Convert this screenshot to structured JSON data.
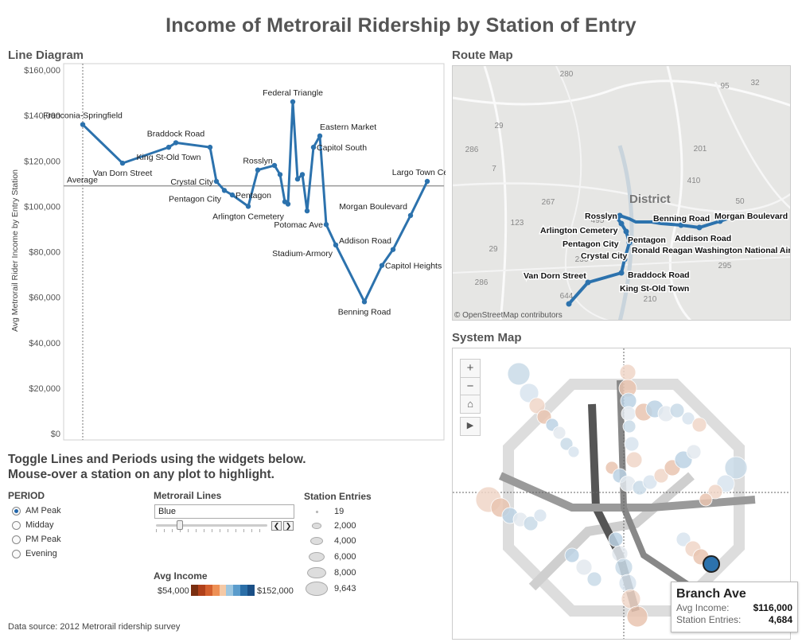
{
  "title": "Income of Metrorail Ridership by Station of Entry",
  "sections": {
    "line_diagram": "Line Diagram",
    "route_map": "Route Map",
    "system_map": "System Map"
  },
  "instructions": {
    "line1": "Toggle Lines and Periods using the widgets below.",
    "line2": "Mouse-over a station on any plot to highlight."
  },
  "period": {
    "title": "PERIOD",
    "options": [
      "AM Peak",
      "Midday",
      "PM Peak",
      "Evening"
    ],
    "selected": "AM Peak"
  },
  "metrorail_lines": {
    "title": "Metrorail Lines",
    "value": "Blue"
  },
  "station_entries": {
    "title": "Station Entries",
    "values": [
      "19",
      "2,000",
      "4,000",
      "6,000",
      "8,000",
      "9,643"
    ]
  },
  "avg_income": {
    "title": "Avg Income",
    "min": "$54,000",
    "max": "$152,000",
    "colors": [
      "#7a2e10",
      "#b0401a",
      "#d4602e",
      "#ee9055",
      "#f5c9a5",
      "#9cc6e0",
      "#5a9ccc",
      "#2b6fa8",
      "#1a4f86"
    ]
  },
  "data_source": "Data source:  2012 Metrorail ridership survey",
  "chart_data": {
    "type": "line",
    "title": "",
    "xlabel": "",
    "ylabel": "Avg Metrorail Rider Income by Entry Station",
    "ylim": [
      0,
      160000
    ],
    "yticks": [
      "$0",
      "$20,000",
      "$40,000",
      "$60,000",
      "$80,000",
      "$100,000",
      "$120,000",
      "$140,000",
      "$160,000"
    ],
    "average_label": "Average",
    "average_value": 109000,
    "color": "#2c72ad",
    "series": [
      {
        "values": [
          [
            0,
            136000
          ],
          [
            1,
            119000
          ],
          [
            2,
            126000
          ],
          [
            3,
            128000
          ],
          [
            4,
            126000
          ],
          [
            5,
            111000
          ],
          [
            6,
            107000
          ],
          [
            7,
            105000
          ],
          [
            8,
            100000
          ],
          [
            9,
            116000
          ],
          [
            10,
            118000
          ],
          [
            11,
            114000
          ],
          [
            12,
            102000
          ],
          [
            13,
            101000
          ],
          [
            14,
            146000
          ],
          [
            15,
            112000
          ],
          [
            16,
            114000
          ],
          [
            17,
            98000
          ],
          [
            18,
            126000
          ],
          [
            19,
            131000
          ],
          [
            20,
            92000
          ],
          [
            21,
            83000
          ],
          [
            22,
            58000
          ],
          [
            23,
            74000
          ],
          [
            24,
            81000
          ],
          [
            25,
            96000
          ],
          [
            26,
            111000
          ]
        ]
      }
    ],
    "labels": [
      {
        "i": 0,
        "text": "Franconia-Springfield",
        "pos": "above"
      },
      {
        "i": 1,
        "text": "Van Dorn Street",
        "pos": "below"
      },
      {
        "i": 2,
        "text": "King St-Old Town",
        "pos": "below"
      },
      {
        "i": 3,
        "text": "Braddock Road",
        "pos": "above"
      },
      {
        "i": 5,
        "text": "Crystal City",
        "pos": "left"
      },
      {
        "i": 6,
        "text": "Pentagon City",
        "pos": "belowleft"
      },
      {
        "i": 7,
        "text": "Pentagon",
        "pos": "right"
      },
      {
        "i": 8,
        "text": "Arlington Cemetery",
        "pos": "below"
      },
      {
        "i": 9,
        "text": "Rosslyn",
        "pos": "above"
      },
      {
        "i": 14,
        "text": "Federal Triangle",
        "pos": "above"
      },
      {
        "i": 19,
        "text": "Eastern Market",
        "pos": "aboveright"
      },
      {
        "i": 18,
        "text": "Capitol South",
        "pos": "right"
      },
      {
        "i": 20,
        "text": "Potomac Ave",
        "pos": "left"
      },
      {
        "i": 21,
        "text": "Stadium-Armory",
        "pos": "belowleft"
      },
      {
        "i": 21,
        "text": "Addison Road",
        "pos": "right2"
      },
      {
        "i": 22,
        "text": "Benning Road",
        "pos": "below"
      },
      {
        "i": 23,
        "text": "Capitol Heights",
        "pos": "right"
      },
      {
        "i": 25,
        "text": "Morgan Boulevard",
        "pos": "aboveleft"
      },
      {
        "i": 26,
        "text": "Largo Town Center",
        "pos": "above"
      }
    ]
  },
  "route_map": {
    "attribution": "© OpenStreetMap contributors",
    "district_label": "District",
    "stations": [
      "Rosslyn",
      "Arlington Cemetery",
      "Pentagon City",
      "Pentagon",
      "Crystal City",
      "Ronald Reagan Washington National Airport",
      "Braddock Road",
      "King St-Old Town",
      "Van Dorn Street",
      "Benning Road",
      "Addison Road",
      "Morgan Boulevard"
    ],
    "road_numbers": [
      "280",
      "29",
      "286",
      "7",
      "267",
      "123",
      "29",
      "286",
      "644",
      "236",
      "495",
      "410",
      "201",
      "50",
      "210",
      "95",
      "295",
      "32"
    ]
  },
  "system_map": {
    "controls": [
      "+",
      "−",
      "⌂",
      "▶"
    ]
  },
  "tooltip": {
    "title": "Branch Ave",
    "income_key": "Avg Income:",
    "income_val": "$116,000",
    "entries_key": "Station Entries:",
    "entries_val": "4,684"
  }
}
